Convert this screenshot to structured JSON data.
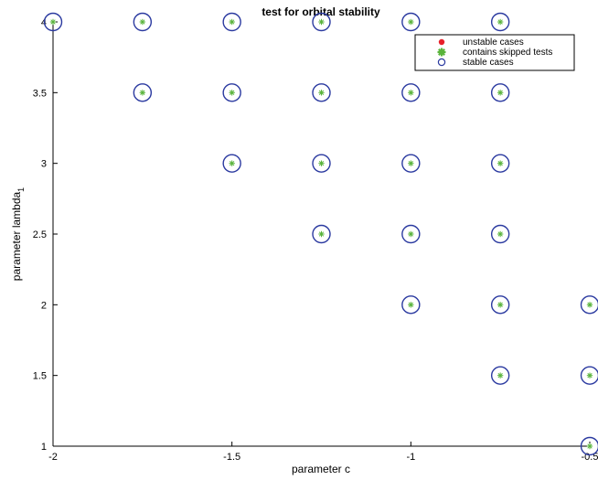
{
  "chart_data": {
    "type": "scatter",
    "title": "test for orbital stability",
    "xlabel": "parameter c",
    "ylabel": "parameter lambda",
    "ylabel_subscript": "1",
    "xlim": [
      -2,
      -0.5
    ],
    "ylim": [
      1,
      4
    ],
    "xticks": [
      -2,
      -1.5,
      -1,
      -0.5
    ],
    "xtick_labels": [
      "-2",
      "-1.5",
      "-1",
      "-0.5"
    ],
    "yticks": [
      1,
      1.5,
      2,
      2.5,
      3,
      3.5,
      4
    ],
    "ytick_labels": [
      "1",
      "1.5",
      "2",
      "2.5",
      "3",
      "3.5",
      "4"
    ],
    "grid": false,
    "legend_position": "top-right",
    "legend": [
      "unstable cases",
      "contains skipped tests",
      "stable cases"
    ],
    "series": [
      {
        "name": "unstable cases",
        "marker": "filled-dot",
        "color": "#e8202a",
        "points": []
      },
      {
        "name": "contains skipped tests",
        "marker": "asterisk",
        "color": "#5ab43c",
        "points": [
          [
            -2,
            4
          ],
          [
            -1.75,
            4
          ],
          [
            -1.5,
            4
          ],
          [
            -1.25,
            4
          ],
          [
            -1,
            4
          ],
          [
            -0.75,
            4
          ],
          [
            -1.75,
            3.5
          ],
          [
            -1.5,
            3.5
          ],
          [
            -1.25,
            3.5
          ],
          [
            -1,
            3.5
          ],
          [
            -0.75,
            3.5
          ],
          [
            -1.5,
            3
          ],
          [
            -1.25,
            3
          ],
          [
            -1,
            3
          ],
          [
            -0.75,
            3
          ],
          [
            -1.25,
            2.5
          ],
          [
            -1,
            2.5
          ],
          [
            -0.75,
            2.5
          ],
          [
            -1,
            2
          ],
          [
            -0.75,
            2
          ],
          [
            -0.5,
            2
          ],
          [
            -0.75,
            1.5
          ],
          [
            -0.5,
            1.5
          ],
          [
            -0.5,
            1
          ]
        ]
      },
      {
        "name": "stable cases",
        "marker": "open-circle",
        "color": "#2b3aa0",
        "points": [
          [
            -2,
            4
          ],
          [
            -1.75,
            4
          ],
          [
            -1.5,
            4
          ],
          [
            -1.25,
            4
          ],
          [
            -1,
            4
          ],
          [
            -0.75,
            4
          ],
          [
            -1.75,
            3.5
          ],
          [
            -1.5,
            3.5
          ],
          [
            -1.25,
            3.5
          ],
          [
            -1,
            3.5
          ],
          [
            -0.75,
            3.5
          ],
          [
            -1.5,
            3
          ],
          [
            -1.25,
            3
          ],
          [
            -1,
            3
          ],
          [
            -0.75,
            3
          ],
          [
            -1.25,
            2.5
          ],
          [
            -1,
            2.5
          ],
          [
            -0.75,
            2.5
          ],
          [
            -1,
            2
          ],
          [
            -0.75,
            2
          ],
          [
            -0.5,
            2
          ],
          [
            -0.75,
            1.5
          ],
          [
            -0.5,
            1.5
          ],
          [
            -0.5,
            1
          ]
        ]
      }
    ]
  }
}
